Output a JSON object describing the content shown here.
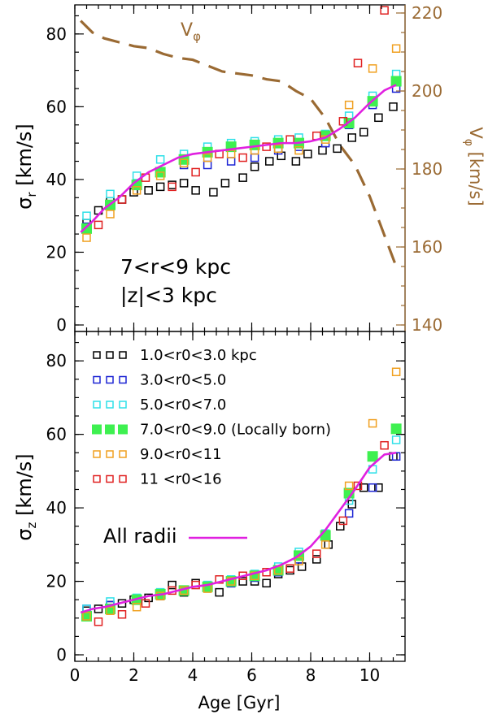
{
  "chart_data": {
    "type": "scatter",
    "xlabel": "Age [Gyr]",
    "xlim": [
      0,
      11.2
    ],
    "xticks": [
      "0",
      "2",
      "4",
      "6",
      "8",
      "10"
    ],
    "panels": [
      {
        "id": "top",
        "ylabel": "σr [km/s]",
        "ylim": [
          0,
          88
        ],
        "yticks": [
          "0",
          "20",
          "40",
          "60",
          "80"
        ],
        "right_ylabel": "Vφ [km/s]",
        "right_ylim": [
          140,
          220
        ],
        "right_yticks": [
          "140",
          "160",
          "180",
          "200",
          "220"
        ],
        "annotation_lines": [
          "7<r<9 kpc",
          "|z|<3 kpc"
        ],
        "vphi_label": "Vφ",
        "vphi_curve": {
          "x": [
            0.2,
            0.6,
            1.0,
            1.5,
            2.0,
            2.5,
            3.0,
            3.5,
            4.0,
            4.5,
            5.0,
            5.5,
            6.0,
            6.5,
            7.0,
            7.5,
            8.0,
            8.5,
            9.0,
            9.5,
            10.0,
            10.5,
            10.9
          ],
          "y": [
            218,
            215,
            213.5,
            212.5,
            211.5,
            211,
            209.5,
            208.5,
            208,
            206.5,
            205,
            204.5,
            204,
            203,
            202.5,
            200,
            198,
            193,
            186,
            181,
            173,
            163,
            155
          ]
        },
        "all_radii_curve": {
          "x": [
            0.2,
            0.6,
            1.0,
            1.5,
            2.0,
            2.5,
            3.0,
            3.5,
            4.0,
            4.5,
            5.0,
            5.5,
            6.0,
            6.5,
            7.0,
            7.5,
            8.0,
            8.5,
            9.0,
            9.5,
            10.0,
            10.5,
            10.9
          ],
          "y": [
            25.5,
            28.5,
            32,
            35,
            39,
            42,
            44,
            46,
            47,
            47.5,
            48,
            48.5,
            49,
            49.5,
            50,
            50,
            50.5,
            51.5,
            54,
            57,
            61,
            64.5,
            66
          ]
        },
        "series": [
          {
            "name": "1.0<r0<3.0 kpc",
            "x": [
              0.4,
              0.8,
              1.2,
              1.6,
              2.0,
              2.5,
              2.9,
              3.3,
              3.7,
              4.1,
              4.7,
              5.1,
              5.7,
              6.1,
              6.6,
              7.0,
              7.5,
              7.9,
              8.4,
              8.9,
              9.4,
              9.8,
              10.3,
              10.8
            ],
            "y": [
              28,
              31.5,
              34,
              34.5,
              36.5,
              37,
              38,
              38.5,
              39,
              37,
              36.5,
              39,
              40.5,
              43.5,
              45,
              46.5,
              45,
              47,
              48,
              48.5,
              51.5,
              53,
              57,
              60
            ]
          },
          {
            "name": "3.0<r0<5.0",
            "x": [
              0.4,
              1.2,
              2.1,
              2.9,
              3.7,
              4.5,
              5.3,
              6.1,
              6.9,
              7.6,
              8.5,
              9.3,
              10.1,
              10.9
            ],
            "y": [
              27,
              33,
              38.5,
              42,
              44,
              44,
              45,
              46,
              48,
              49,
              50,
              55,
              60.5,
              65
            ]
          },
          {
            "name": "5.0<r0<7.0",
            "x": [
              0.4,
              1.2,
              2.1,
              2.9,
              3.7,
              4.5,
              5.3,
              6.1,
              6.9,
              7.6,
              8.5,
              9.3,
              10.1,
              10.9
            ],
            "y": [
              30,
              36,
              41,
              45.5,
              47,
              49,
              50,
              50.5,
              51,
              51.5,
              52.5,
              57.5,
              63,
              69
            ]
          },
          {
            "name": "7.0<r0<9.0 (Locally born)",
            "x": [
              0.4,
              1.2,
              2.1,
              2.9,
              3.7,
              4.5,
              5.3,
              6.1,
              6.9,
              7.6,
              8.5,
              9.3,
              10.1,
              10.9
            ],
            "y": [
              26.5,
              33,
              38.5,
              42,
              45.5,
              47.5,
              49,
              49.5,
              50,
              50,
              52,
              55.5,
              61.5,
              67
            ]
          },
          {
            "name": "9.0<r0<11",
            "x": [
              0.4,
              1.2,
              2.1,
              2.9,
              3.7,
              4.5,
              5.3,
              6.1,
              6.9,
              7.6,
              8.5,
              9.3,
              10.1,
              10.9
            ],
            "y": [
              24,
              30.5,
              37,
              41,
              44.5,
              46,
              47,
              48,
              48.5,
              48,
              51,
              60.5,
              70.5,
              76
            ]
          },
          {
            "name": "11 <r0<16",
            "x": [
              0.8,
              1.6,
              2.4,
              3.3,
              4.1,
              4.9,
              5.7,
              6.5,
              7.3,
              8.2,
              9.1,
              9.6,
              10.5
            ],
            "y": [
              27.5,
              34.5,
              40.5,
              38,
              42,
              47,
              46,
              49,
              51,
              52,
              56,
              72,
              86.5
            ]
          }
        ]
      },
      {
        "id": "bottom",
        "ylabel": "σz [km/s]",
        "ylim": [
          0,
          88
        ],
        "yticks": [
          "0",
          "20",
          "40",
          "60",
          "80"
        ],
        "all_radii_label": "All radii",
        "all_radii_curve": {
          "x": [
            0.2,
            0.6,
            1.0,
            1.5,
            2.0,
            2.5,
            3.0,
            3.5,
            4.0,
            4.5,
            5.0,
            5.5,
            6.0,
            6.5,
            7.0,
            7.5,
            8.0,
            8.5,
            9.0,
            9.5,
            10.0,
            10.5,
            10.9
          ],
          "y": [
            11.5,
            12.5,
            13,
            14,
            15,
            16,
            16.5,
            17.5,
            18.5,
            19,
            20,
            21,
            22,
            23,
            24.5,
            26.5,
            29.5,
            34,
            39.5,
            45,
            51,
            54.5,
            55
          ]
        },
        "series": [
          {
            "name": "1.0<r0<3.0 kpc",
            "x": [
              0.4,
              0.8,
              1.2,
              1.6,
              2.0,
              2.5,
              2.9,
              3.3,
              3.7,
              4.1,
              4.5,
              4.9,
              5.3,
              5.7,
              6.1,
              6.5,
              6.9,
              7.3,
              7.7,
              8.2,
              8.6,
              9.0,
              9.4,
              9.8,
              10.3,
              10.8
            ],
            "y": [
              12,
              12.5,
              13.5,
              14,
              15,
              15.5,
              16,
              19,
              17,
              19.5,
              18.5,
              17,
              19.5,
              20,
              20,
              19.5,
              22,
              23,
              24,
              26,
              30,
              35,
              41,
              45.5,
              45.5,
              54
            ]
          },
          {
            "name": "3.0<r0<5.0",
            "x": [
              0.4,
              1.2,
              2.1,
              2.9,
              3.7,
              4.5,
              5.3,
              6.1,
              6.9,
              7.6,
              8.5,
              9.3,
              10.1,
              10.9
            ],
            "y": [
              12.5,
              13.5,
              15,
              16.5,
              17.5,
              18.5,
              19.5,
              21,
              22.5,
              26,
              32,
              38.5,
              45.5,
              54
            ]
          },
          {
            "name": "5.0<r0<7.0",
            "x": [
              0.4,
              1.2,
              2.1,
              2.9,
              3.7,
              4.5,
              5.3,
              6.1,
              6.9,
              7.6,
              8.5,
              9.3,
              10.1,
              10.9
            ],
            "y": [
              12.5,
              14.5,
              15.5,
              17,
              17.5,
              19,
              20.5,
              22,
              24,
              28,
              33,
              42,
              50.5,
              58.5
            ]
          },
          {
            "name": "7.0<r0<9.0 (Locally born)",
            "x": [
              0.4,
              1.2,
              2.1,
              2.9,
              3.7,
              4.5,
              5.3,
              6.1,
              6.9,
              7.6,
              8.5,
              9.3,
              10.1,
              10.9
            ],
            "y": [
              10.5,
              12.5,
              15,
              16.5,
              17.5,
              18.5,
              20,
              21.5,
              23,
              27,
              32.5,
              44,
              54,
              61.5
            ]
          },
          {
            "name": "9.0<r0<11",
            "x": [
              0.4,
              1.2,
              2.1,
              2.9,
              3.7,
              4.5,
              5.3,
              6.1,
              6.9,
              7.6,
              8.5,
              9.3,
              10.1,
              10.9
            ],
            "y": [
              10.5,
              12,
              13,
              16,
              17.5,
              18,
              20,
              21.5,
              23,
              25.5,
              30,
              46,
              63,
              77
            ]
          },
          {
            "name": "11 <r0<16",
            "x": [
              0.8,
              1.6,
              2.4,
              3.3,
              4.1,
              4.9,
              5.7,
              6.5,
              7.3,
              8.2,
              9.1,
              9.6,
              10.5
            ],
            "y": [
              9,
              11,
              14,
              17.5,
              19,
              20.5,
              21.5,
              22.5,
              23.5,
              27.5,
              36.5,
              46,
              57
            ]
          }
        ]
      }
    ],
    "legend": [
      {
        "label": "1.0<r0<3.0 kpc",
        "color": "#000000",
        "filled": false
      },
      {
        "label": "3.0<r0<5.0",
        "color": "#1c24d4",
        "filled": false
      },
      {
        "label": "5.0<r0<7.0",
        "color": "#2ee0e8",
        "filled": false
      },
      {
        "label": "7.0<r0<9.0 (Locally born)",
        "color": "#3ef050",
        "filled": true
      },
      {
        "label": "9.0<r0<11",
        "color": "#f0a020",
        "filled": false
      },
      {
        "label": "11 <r0<16",
        "color": "#e02020",
        "filled": false
      }
    ],
    "colors": {
      "all_radii": "#e020e0",
      "vphi": "#9a6a33",
      "axis": "#000000"
    }
  }
}
